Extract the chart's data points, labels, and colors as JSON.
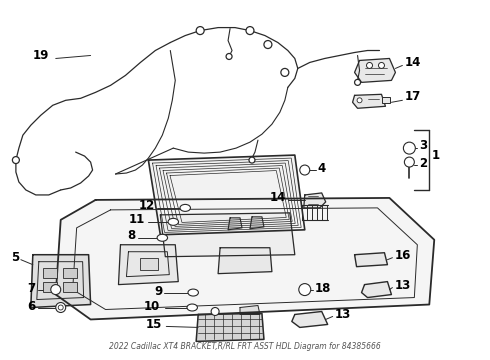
{
  "title": "2022 Cadillac XT4 BRACKET,R/RL FRT ASST HDL Diagram for 84385666",
  "bg_color": "#ffffff",
  "line_color": "#2a2a2a",
  "label_color": "#000000",
  "fig_w": 4.9,
  "fig_h": 3.6,
  "dpi": 100
}
